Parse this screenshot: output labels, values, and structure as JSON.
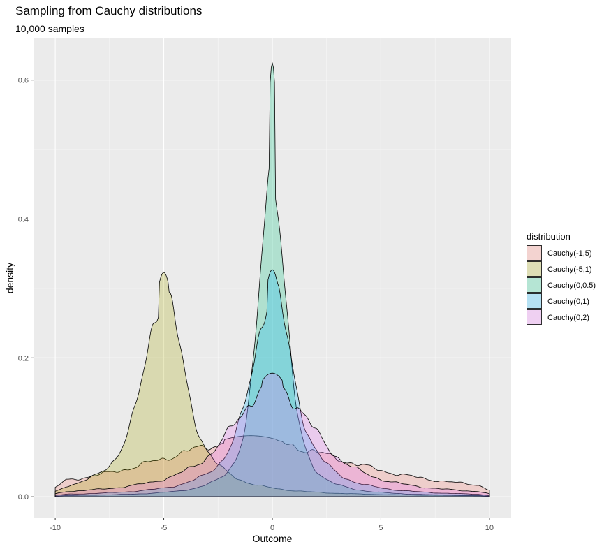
{
  "chart_data": {
    "type": "area",
    "title": "Sampling from Cauchy distributions",
    "subtitle": "10,000 samples",
    "xlabel": "Outcome",
    "ylabel": "density",
    "xlim": [
      -11,
      11
    ],
    "ylim": [
      -0.03,
      0.66
    ],
    "x_ticks": [
      -10,
      -5,
      0,
      5,
      10
    ],
    "x_tick_labels": [
      "-10",
      "-5",
      "0",
      "5",
      "10"
    ],
    "y_ticks": [
      0.0,
      0.2,
      0.4,
      0.6
    ],
    "y_tick_labels": [
      "0.0",
      "0.2",
      "0.4",
      "0.6"
    ],
    "x_range": [
      -10,
      10
    ],
    "legend_title": "distribution",
    "legend_position": "right",
    "series": [
      {
        "name": "Cauchy(-1,5)",
        "location": -1,
        "scale": 5,
        "peak_density": 0.088,
        "color": "#F8766D"
      },
      {
        "name": "Cauchy(-5,1)",
        "location": -5,
        "scale": 1,
        "peak_density": 0.323,
        "color": "#A3A500"
      },
      {
        "name": "Cauchy(0,0.5)",
        "location": 0,
        "scale": 0.5,
        "peak_density": 0.625,
        "color": "#00BF7D"
      },
      {
        "name": "Cauchy(0,1)",
        "location": 0,
        "scale": 1,
        "peak_density": 0.327,
        "color": "#00B0F6"
      },
      {
        "name": "Cauchy(0,2)",
        "location": 0,
        "scale": 2,
        "peak_density": 0.178,
        "color": "#E76BF3"
      }
    ]
  }
}
